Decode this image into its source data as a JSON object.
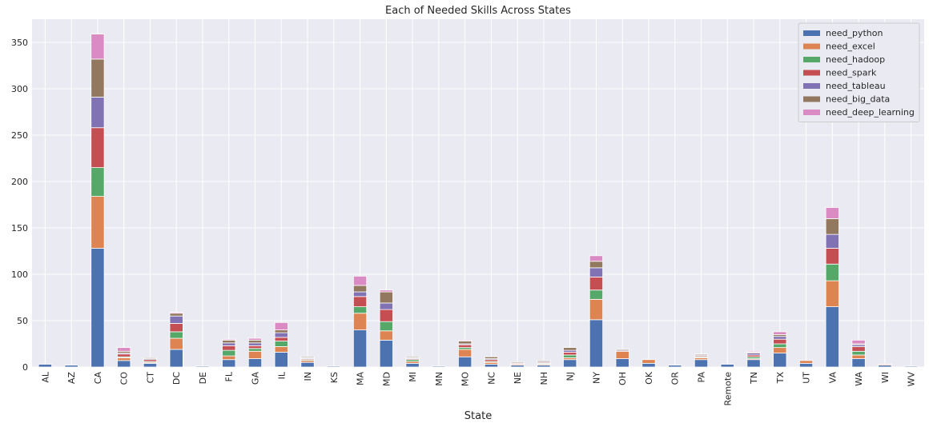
{
  "chart_data": {
    "type": "bar",
    "stacked": true,
    "title": "Each of Needed Skills Across States",
    "xlabel": "State",
    "ylabel": "",
    "ylim": [
      0,
      375
    ],
    "yticks": [
      0,
      50,
      100,
      150,
      200,
      250,
      300,
      350
    ],
    "grid": true,
    "legend_position": "top-right",
    "categories": [
      "AL",
      "AZ",
      "CA",
      "CO",
      "CT",
      "DC",
      "DE",
      "FL",
      "GA",
      "IL",
      "IN",
      "KS",
      "MA",
      "MD",
      "MI",
      "MN",
      "MO",
      "NC",
      "NE",
      "NH",
      "NJ",
      "NY",
      "OH",
      "OK",
      "OR",
      "PA",
      "Remote",
      "TN",
      "TX",
      "UT",
      "VA",
      "WA",
      "WI",
      "WV"
    ],
    "series": [
      {
        "name": "need_python",
        "color": "#4c72b0",
        "values": [
          3,
          2,
          128,
          7,
          4,
          19,
          1,
          8,
          9,
          16,
          5,
          1,
          40,
          29,
          4,
          1,
          11,
          3,
          2,
          2,
          8,
          51,
          9,
          4,
          2,
          8,
          3,
          8,
          15,
          4,
          65,
          9,
          2,
          1
        ]
      },
      {
        "name": "need_excel",
        "color": "#dd8452",
        "values": [
          0,
          0,
          56,
          3,
          1,
          12,
          0,
          4,
          8,
          6,
          2,
          0,
          18,
          10,
          2,
          0,
          8,
          2,
          1,
          1,
          2,
          22,
          8,
          4,
          0,
          2,
          0,
          1,
          6,
          3,
          28,
          4,
          1,
          0
        ]
      },
      {
        "name": "need_hadoop",
        "color": "#55a868",
        "values": [
          0,
          0,
          31,
          1,
          1,
          7,
          0,
          6,
          3,
          6,
          1,
          0,
          7,
          10,
          2,
          0,
          2,
          1,
          0,
          1,
          3,
          10,
          0,
          0,
          0,
          1,
          0,
          2,
          4,
          0,
          18,
          4,
          0,
          0
        ]
      },
      {
        "name": "need_spark",
        "color": "#c44e52",
        "values": [
          0,
          0,
          43,
          3,
          2,
          9,
          0,
          5,
          3,
          4,
          1,
          0,
          11,
          13,
          1,
          0,
          3,
          2,
          1,
          1,
          3,
          14,
          0,
          0,
          0,
          1,
          0,
          2,
          5,
          0,
          17,
          5,
          0,
          0
        ]
      },
      {
        "name": "need_tableau",
        "color": "#8172b3",
        "values": [
          0,
          0,
          33,
          1,
          1,
          8,
          0,
          3,
          3,
          5,
          1,
          0,
          5,
          7,
          1,
          0,
          1,
          1,
          0,
          1,
          2,
          10,
          1,
          0,
          0,
          1,
          0,
          2,
          3,
          0,
          15,
          2,
          0,
          0
        ]
      },
      {
        "name": "need_big_data",
        "color": "#937860",
        "values": [
          0,
          0,
          41,
          2,
          1,
          3,
          0,
          3,
          3,
          3,
          1,
          0,
          7,
          12,
          1,
          0,
          3,
          2,
          1,
          1,
          3,
          7,
          1,
          0,
          0,
          1,
          0,
          1,
          2,
          0,
          17,
          1,
          0,
          0
        ]
      },
      {
        "name": "need_deep_learning",
        "color": "#da8bc3",
        "values": [
          0,
          0,
          27,
          4,
          0,
          1,
          0,
          1,
          2,
          8,
          0,
          0,
          10,
          2,
          0,
          0,
          1,
          0,
          0,
          0,
          0,
          6,
          0,
          0,
          0,
          0,
          0,
          1,
          3,
          0,
          12,
          4,
          0,
          0
        ]
      }
    ]
  }
}
